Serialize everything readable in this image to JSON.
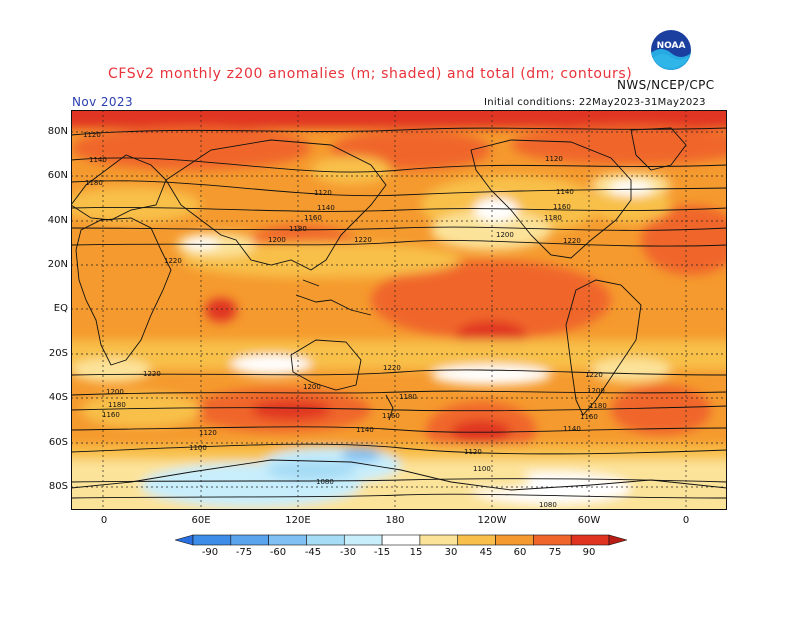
{
  "title": "CFSv2 monthly z200 anomalies (m; shaded) and total (dm; contours)",
  "agency": "NWS/NCEP/CPC",
  "logo_text": "NOAA",
  "month": "Nov 2023",
  "initial_conditions": "Initial conditions: 22May2023-31May2023",
  "lat_labels": [
    "80N",
    "60N",
    "40N",
    "20N",
    "EQ",
    "20S",
    "40S",
    "60S",
    "80S"
  ],
  "lon_labels": [
    "0",
    "60E",
    "120E",
    "180",
    "120W",
    "60W",
    "0"
  ],
  "colorbar": {
    "ticks": [
      "-90",
      "-75",
      "-60",
      "-45",
      "-30",
      "-15",
      "15",
      "30",
      "45",
      "60",
      "75",
      "90"
    ],
    "colors": [
      "#2a6fe0",
      "#3c8ce8",
      "#5aa4ee",
      "#80c0f2",
      "#a6dcf6",
      "#c8eefc",
      "#ffffff",
      "#fce39a",
      "#f8c04a",
      "#f59a2e",
      "#f0662a",
      "#e03420",
      "#b81e16"
    ]
  },
  "contour_labels": {
    "north": [
      "1120",
      "1140",
      "1160",
      "1180",
      "1200",
      "1220"
    ],
    "south": [
      "1220",
      "1200",
      "1180",
      "1160",
      "1140",
      "1120",
      "1100",
      "1080"
    ]
  },
  "colors": {
    "title": "#e8333a",
    "month": "#2a3fb0"
  }
}
